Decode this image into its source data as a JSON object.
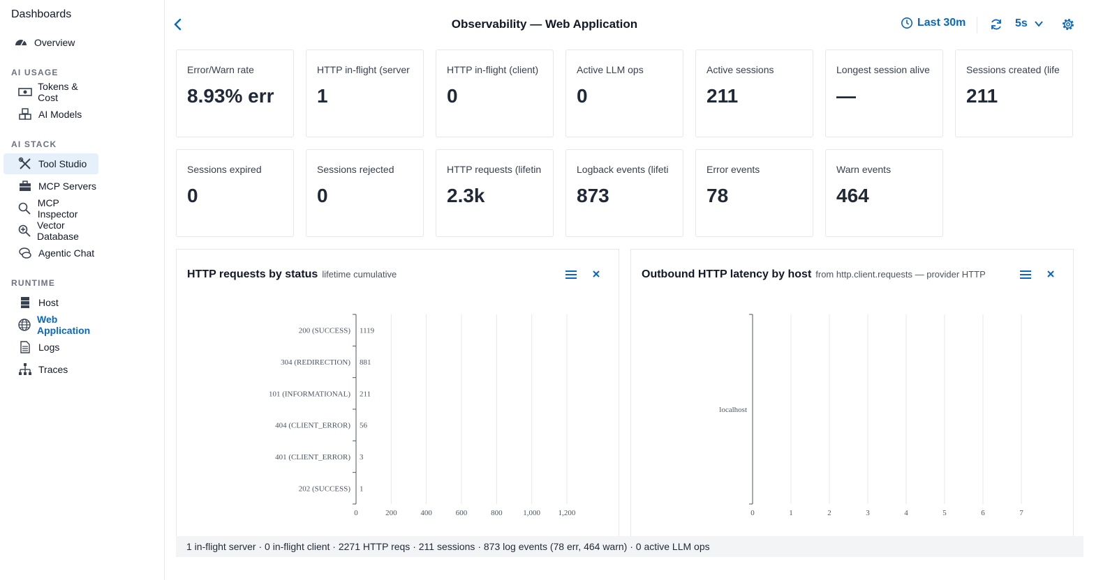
{
  "sidebar": {
    "title": "Dashboards",
    "overview": "Overview",
    "sections": {
      "ai_usage": "AI USAGE",
      "ai_stack": "AI STACK",
      "runtime": "RUNTIME"
    },
    "items": {
      "tokens_cost": "Tokens & Cost",
      "ai_models": "AI Models",
      "tool_studio": "Tool Studio",
      "mcp_servers": "MCP Servers",
      "mcp_inspector": "MCP Inspector",
      "vector_database": "Vector Database",
      "agentic_chat": "Agentic Chat",
      "host": "Host",
      "web_application": "Web Application",
      "logs": "Logs",
      "traces": "Traces"
    }
  },
  "header": {
    "title": "Observability — Web Application",
    "time_range": "Last 30m",
    "refresh_interval": "5s"
  },
  "metrics": [
    {
      "label": "Error/Warn rate",
      "value": "8.93% err"
    },
    {
      "label": "HTTP in-flight (server",
      "value": "1"
    },
    {
      "label": "HTTP in-flight (client)",
      "value": "0"
    },
    {
      "label": "Active LLM ops",
      "value": "0"
    },
    {
      "label": "Active sessions",
      "value": "211"
    },
    {
      "label": "Longest session alive",
      "value": "—"
    },
    {
      "label": "Sessions created (life",
      "value": "211"
    },
    {
      "label": "Sessions expired",
      "value": "0"
    },
    {
      "label": "Sessions rejected",
      "value": "0"
    },
    {
      "label": "HTTP requests (lifetin",
      "value": "2.3k"
    },
    {
      "label": "Logback events (lifeti",
      "value": "873"
    },
    {
      "label": "Error events",
      "value": "78"
    },
    {
      "label": "Warn events",
      "value": "464"
    }
  ],
  "panels": {
    "status": {
      "title": "HTTP requests by status",
      "subtitle": "lifetime cumulative"
    },
    "latency": {
      "title": "Outbound HTTP latency by host",
      "subtitle": "from http.client.requests — provider HTTP"
    }
  },
  "chart_data": [
    {
      "type": "bar",
      "orientation": "horizontal",
      "categories": [
        "200 (SUCCESS)",
        "304 (REDIRECTION)",
        "101 (INFORMATIONAL)",
        "404 (CLIENT_ERROR)",
        "401 (CLIENT_ERROR)",
        "202 (SUCCESS)"
      ],
      "values": [
        1119,
        881,
        211,
        56,
        3,
        1
      ],
      "data_labels": [
        "1119",
        "881",
        "211",
        "56",
        "3",
        "1"
      ],
      "xticks": [
        "0",
        "200",
        "400",
        "600",
        "800",
        "1,000",
        "1,200"
      ],
      "xlim": [
        0,
        1200
      ],
      "grid": true
    },
    {
      "type": "bar",
      "orientation": "horizontal",
      "categories": [
        "localhost"
      ],
      "values": [
        0
      ],
      "xticks": [
        "0",
        "1",
        "2",
        "3",
        "4",
        "5",
        "6",
        "7"
      ],
      "xlim": [
        0,
        7
      ],
      "grid": true
    }
  ],
  "footer": {
    "summary": "1 in-flight server · 0 in-flight client · 2271 HTTP reqs · 211 sessions · 873 log events (78 err, 464 warn) · 0 active LLM ops"
  },
  "colors": {
    "accent": "#0a66c2",
    "active_bg": "#e6f0fb",
    "footer_bg": "#f3f4f6"
  }
}
